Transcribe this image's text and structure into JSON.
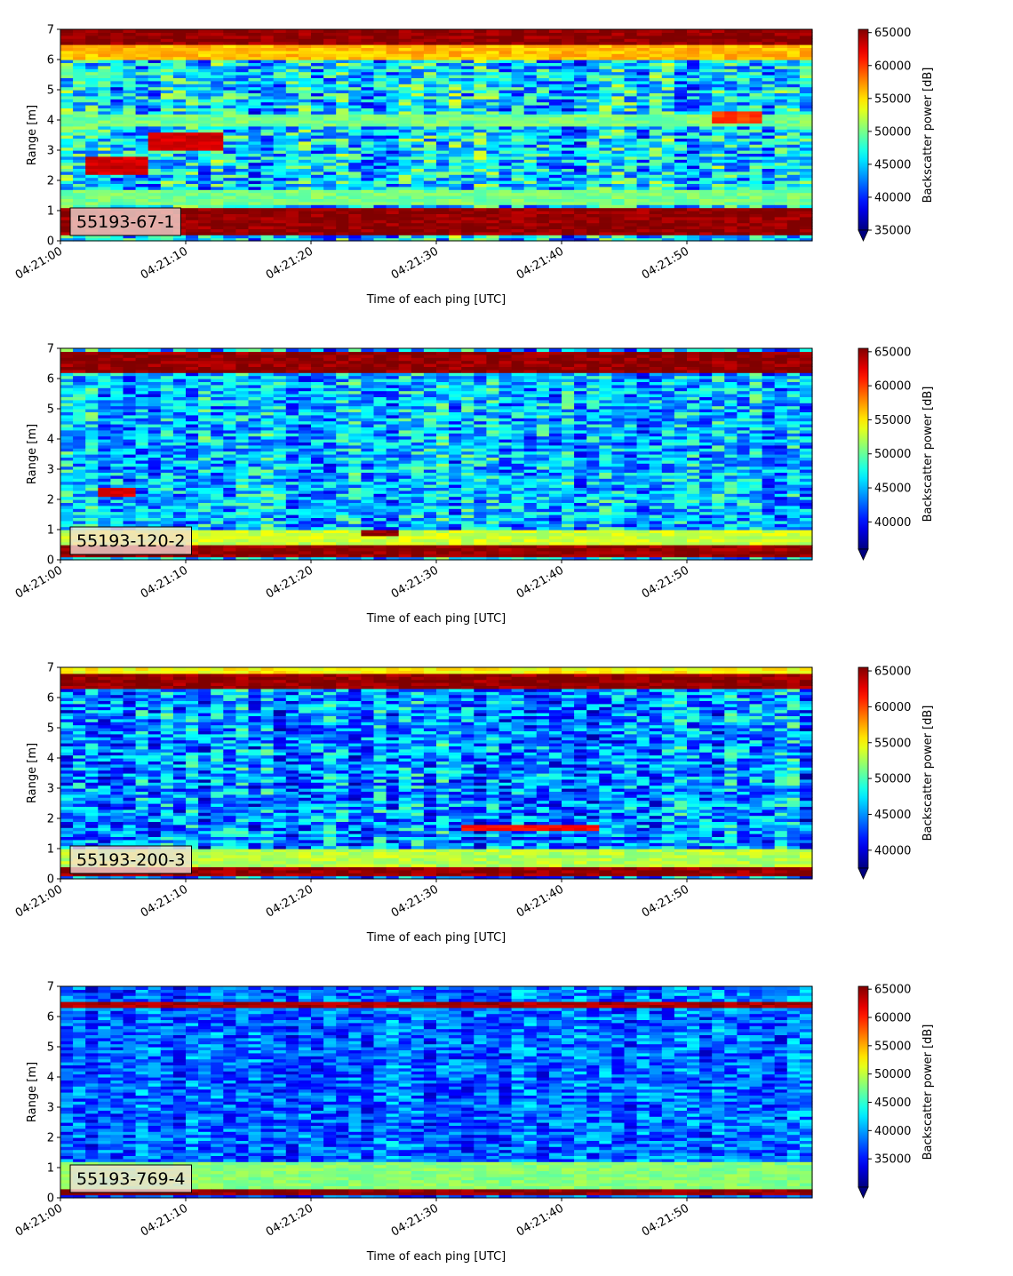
{
  "chart_data": [
    {
      "type": "heatmap",
      "label": "55193-67-1",
      "xlabel": "Time of each ping [UTC]",
      "ylabel": "Range [m]",
      "ylim": [
        0,
        7
      ],
      "xlim": [
        "04:21:00",
        "04:21:59"
      ],
      "xticks": [
        "04:21:00",
        "04:21:10",
        "04:21:20",
        "04:21:30",
        "04:21:40",
        "04:21:50"
      ],
      "yticks": [
        "0",
        "1",
        "2",
        "3",
        "4",
        "5",
        "6",
        "7"
      ],
      "colorbar": {
        "label": "Backscatter power [dB]",
        "min": 35000,
        "max": 65500,
        "ticks": [
          "35000",
          "40000",
          "45000",
          "50000",
          "55000",
          "60000",
          "65000"
        ],
        "extend": "min"
      },
      "features": [
        {
          "kind": "band",
          "range_m": [
            0.2,
            1.1
          ],
          "value": 65000
        },
        {
          "kind": "band",
          "range_m": [
            6.5,
            7.0
          ],
          "value": 65000
        },
        {
          "kind": "band",
          "range_m": [
            6.0,
            6.5
          ],
          "value": 56000
        },
        {
          "kind": "band",
          "range_m": [
            1.2,
            1.7
          ],
          "value": 50000
        },
        {
          "kind": "band",
          "range_m": [
            3.8,
            4.2
          ],
          "value": 50000
        },
        {
          "kind": "patch",
          "time": [
            "04:21:02",
            "04:21:06"
          ],
          "range_m": [
            2.2,
            2.8
          ],
          "value": 63000
        },
        {
          "kind": "patch",
          "time": [
            "04:21:07",
            "04:21:12"
          ],
          "range_m": [
            3.0,
            3.6
          ],
          "value": 63000
        },
        {
          "kind": "patch",
          "time": [
            "04:21:52",
            "04:21:55"
          ],
          "range_m": [
            3.9,
            4.3
          ],
          "value": 60000
        }
      ],
      "background": {
        "mean": 45500,
        "spread": 6000
      }
    },
    {
      "type": "heatmap",
      "label": "55193-120-2",
      "xlabel": "Time of each ping [UTC]",
      "ylabel": "Range [m]",
      "ylim": [
        0,
        7
      ],
      "xlim": [
        "04:21:00",
        "04:21:59"
      ],
      "xticks": [
        "04:21:00",
        "04:21:10",
        "04:21:20",
        "04:21:30",
        "04:21:40",
        "04:21:50"
      ],
      "yticks": [
        "0",
        "1",
        "2",
        "3",
        "4",
        "5",
        "6",
        "7"
      ],
      "colorbar": {
        "label": "Backscatter power [dB]",
        "min": 36000,
        "max": 65500,
        "ticks": [
          "40000",
          "45000",
          "50000",
          "55000",
          "60000",
          "65000"
        ],
        "extend": "min"
      },
      "features": [
        {
          "kind": "band",
          "range_m": [
            0.1,
            0.5
          ],
          "value": 65000
        },
        {
          "kind": "band",
          "range_m": [
            6.2,
            6.9
          ],
          "value": 65000
        },
        {
          "kind": "band",
          "range_m": [
            0.5,
            1.0
          ],
          "value": 53000
        },
        {
          "kind": "patch",
          "time": [
            "04:21:03",
            "04:21:05"
          ],
          "range_m": [
            2.1,
            2.4
          ],
          "value": 63000
        },
        {
          "kind": "patch",
          "time": [
            "04:21:24",
            "04:21:26"
          ],
          "range_m": [
            0.8,
            1.0
          ],
          "value": 65000
        }
      ],
      "background": {
        "mean": 45000,
        "spread": 5000
      }
    },
    {
      "type": "heatmap",
      "label": "55193-200-3",
      "xlabel": "Time of each ping [UTC]",
      "ylabel": "Range [m]",
      "ylim": [
        0,
        7
      ],
      "xlim": [
        "04:21:00",
        "04:21:59"
      ],
      "xticks": [
        "04:21:00",
        "04:21:10",
        "04:21:20",
        "04:21:30",
        "04:21:40",
        "04:21:50"
      ],
      "yticks": [
        "0",
        "1",
        "2",
        "3",
        "4",
        "5",
        "6",
        "7"
      ],
      "colorbar": {
        "label": "Backscatter power [dB]",
        "min": 37500,
        "max": 65500,
        "ticks": [
          "40000",
          "45000",
          "50000",
          "55000",
          "60000",
          "65000"
        ],
        "extend": "min"
      },
      "features": [
        {
          "kind": "band",
          "range_m": [
            0.1,
            0.4
          ],
          "value": 65000
        },
        {
          "kind": "band",
          "range_m": [
            6.3,
            6.8
          ],
          "value": 65000
        },
        {
          "kind": "band",
          "range_m": [
            6.8,
            7.0
          ],
          "value": 55000
        },
        {
          "kind": "band",
          "range_m": [
            0.4,
            1.0
          ],
          "value": 53000
        },
        {
          "kind": "patch",
          "time": [
            "04:21:32",
            "04:21:42"
          ],
          "range_m": [
            1.6,
            1.75
          ],
          "value": 62000
        }
      ],
      "background": {
        "mean": 45000,
        "spread": 5000
      }
    },
    {
      "type": "heatmap",
      "label": "55193-769-4",
      "xlabel": "Time of each ping [UTC]",
      "ylabel": "Range [m]",
      "ylim": [
        0,
        7
      ],
      "xlim": [
        "04:21:00",
        "04:21:59"
      ],
      "xticks": [
        "04:21:00",
        "04:21:10",
        "04:21:20",
        "04:21:30",
        "04:21:40",
        "04:21:50"
      ],
      "yticks": [
        "0",
        "1",
        "2",
        "3",
        "4",
        "5",
        "6",
        "7"
      ],
      "colorbar": {
        "label": "Backscatter power [dB]",
        "min": 30000,
        "max": 65500,
        "ticks": [
          "35000",
          "40000",
          "45000",
          "50000",
          "55000",
          "60000",
          "65000"
        ],
        "extend": "min"
      },
      "features": [
        {
          "kind": "band",
          "range_m": [
            0.15,
            0.35
          ],
          "value": 65000
        },
        {
          "kind": "band",
          "range_m": [
            6.3,
            6.5
          ],
          "value": 64000
        },
        {
          "kind": "band",
          "range_m": [
            0.35,
            1.2
          ],
          "value": 48000
        }
      ],
      "background": {
        "mean": 38000,
        "spread": 4500
      }
    }
  ]
}
